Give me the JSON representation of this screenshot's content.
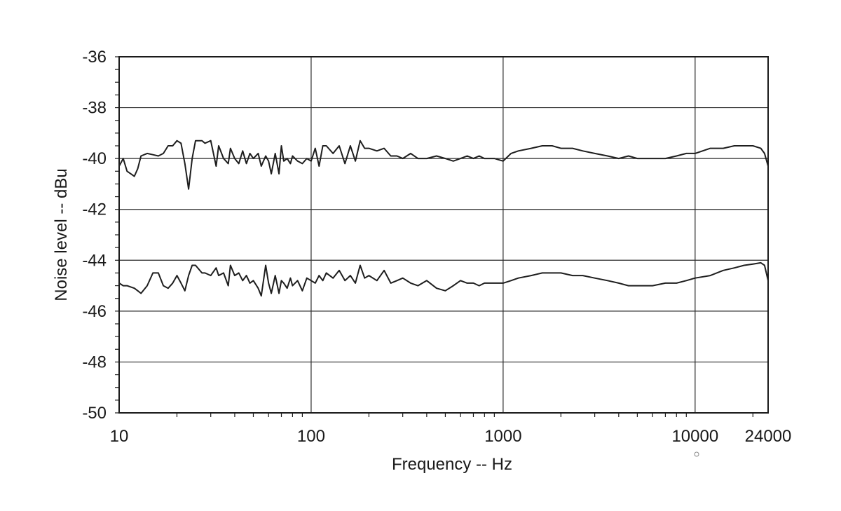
{
  "chart_data": {
    "type": "line",
    "title": "",
    "xlabel": "Frequency -- Hz",
    "ylabel": "Noise level -- dBu",
    "x_scale": "log",
    "xlim": [
      10,
      24000
    ],
    "ylim": [
      -50,
      -36
    ],
    "x_ticks": [
      {
        "value": 10,
        "label": "10"
      },
      {
        "value": 100,
        "label": "100"
      },
      {
        "value": 1000,
        "label": "1000"
      },
      {
        "value": 10000,
        "label": "10000"
      },
      {
        "value": 24000,
        "label": "24000"
      }
    ],
    "y_ticks": [
      {
        "value": -36,
        "label": "-36"
      },
      {
        "value": -38,
        "label": "-38"
      },
      {
        "value": -40,
        "label": "-40"
      },
      {
        "value": -42,
        "label": "-42"
      },
      {
        "value": -44,
        "label": "-44"
      },
      {
        "value": -46,
        "label": "-46"
      },
      {
        "value": -48,
        "label": "-48"
      },
      {
        "value": -50,
        "label": "-50"
      }
    ],
    "grid": true,
    "colors": {
      "line": "#1e1e1e",
      "grid": "#2a2a2a"
    },
    "series": [
      {
        "x": [
          10,
          10.5,
          11,
          11.5,
          12,
          12.5,
          13,
          14,
          15,
          16,
          17,
          18,
          19,
          20,
          21,
          22,
          23,
          24,
          25,
          27,
          28,
          30,
          32,
          33,
          35,
          37,
          38,
          40,
          42,
          44,
          46,
          48,
          50,
          53,
          55,
          58,
          60,
          62,
          65,
          68,
          70,
          72,
          75,
          78,
          80,
          85,
          90,
          95,
          100,
          105,
          110,
          115,
          120,
          130,
          140,
          150,
          160,
          170,
          180,
          190,
          200,
          220,
          240,
          260,
          280,
          300,
          330,
          360,
          400,
          450,
          500,
          550,
          600,
          650,
          700,
          750,
          800,
          900,
          1000,
          1100,
          1200,
          1400,
          1600,
          1800,
          2000,
          2300,
          2600,
          3000,
          3500,
          4000,
          4500,
          5000,
          5500,
          6000,
          7000,
          8000,
          9000,
          10000,
          12000,
          14000,
          16000,
          18000,
          20000,
          22000,
          23000,
          24000
        ],
        "y": [
          -40.3,
          -40.0,
          -40.5,
          -40.6,
          -40.7,
          -40.4,
          -39.9,
          -39.8,
          -39.85,
          -39.9,
          -39.8,
          -39.5,
          -39.5,
          -39.3,
          -39.4,
          -40.2,
          -41.2,
          -40.0,
          -39.3,
          -39.3,
          -39.4,
          -39.3,
          -40.3,
          -39.5,
          -40.0,
          -40.2,
          -39.6,
          -40.0,
          -40.2,
          -39.7,
          -40.2,
          -39.8,
          -40.0,
          -39.8,
          -40.3,
          -39.9,
          -40.1,
          -40.6,
          -39.8,
          -40.6,
          -39.5,
          -40.1,
          -40.0,
          -40.2,
          -39.9,
          -40.1,
          -40.2,
          -40.0,
          -40.1,
          -39.6,
          -40.3,
          -39.5,
          -39.5,
          -39.8,
          -39.5,
          -40.2,
          -39.5,
          -40.1,
          -39.3,
          -39.6,
          -39.6,
          -39.7,
          -39.6,
          -39.9,
          -39.9,
          -40.0,
          -39.8,
          -40.0,
          -40.0,
          -39.9,
          -40.0,
          -40.1,
          -40.0,
          -39.9,
          -40.0,
          -39.9,
          -40.0,
          -40.0,
          -40.1,
          -39.8,
          -39.7,
          -39.6,
          -39.5,
          -39.5,
          -39.6,
          -39.6,
          -39.7,
          -39.8,
          -39.9,
          -40.0,
          -39.9,
          -40.0,
          -40.0,
          -40.0,
          -40.0,
          -39.9,
          -39.8,
          -39.8,
          -39.6,
          -39.6,
          -39.5,
          -39.5,
          -39.5,
          -39.6,
          -39.8,
          -40.3
        ]
      },
      {
        "x": [
          10,
          10.5,
          11,
          11.5,
          12,
          12.5,
          13,
          14,
          15,
          16,
          17,
          18,
          19,
          20,
          21,
          22,
          23,
          24,
          25,
          27,
          28,
          30,
          32,
          33,
          35,
          37,
          38,
          40,
          42,
          44,
          46,
          48,
          50,
          53,
          55,
          58,
          60,
          62,
          65,
          68,
          70,
          72,
          75,
          78,
          80,
          85,
          90,
          95,
          100,
          105,
          110,
          115,
          120,
          130,
          140,
          150,
          160,
          170,
          180,
          190,
          200,
          220,
          240,
          260,
          280,
          300,
          330,
          360,
          400,
          450,
          500,
          550,
          600,
          650,
          700,
          750,
          800,
          900,
          1000,
          1100,
          1200,
          1400,
          1600,
          1800,
          2000,
          2300,
          2600,
          3000,
          3500,
          4000,
          4500,
          5000,
          5500,
          6000,
          7000,
          8000,
          9000,
          10000,
          12000,
          14000,
          16000,
          18000,
          20000,
          22000,
          23000,
          24000
        ],
        "y": [
          -44.9,
          -45.0,
          -45.0,
          -45.05,
          -45.1,
          -45.2,
          -45.3,
          -45.0,
          -44.5,
          -44.5,
          -45.0,
          -45.1,
          -44.9,
          -44.6,
          -44.9,
          -45.2,
          -44.6,
          -44.2,
          -44.2,
          -44.5,
          -44.5,
          -44.6,
          -44.3,
          -44.6,
          -44.5,
          -45.0,
          -44.2,
          -44.6,
          -44.5,
          -44.8,
          -44.6,
          -44.9,
          -44.8,
          -45.1,
          -45.4,
          -44.2,
          -44.9,
          -45.3,
          -44.6,
          -45.3,
          -44.8,
          -44.9,
          -45.1,
          -44.7,
          -45.0,
          -44.8,
          -45.2,
          -44.7,
          -44.8,
          -44.9,
          -44.6,
          -44.8,
          -44.5,
          -44.7,
          -44.4,
          -44.8,
          -44.6,
          -44.9,
          -44.2,
          -44.7,
          -44.6,
          -44.8,
          -44.4,
          -44.9,
          -44.8,
          -44.7,
          -44.9,
          -45.0,
          -44.8,
          -45.1,
          -45.2,
          -45.0,
          -44.8,
          -44.9,
          -44.9,
          -45.0,
          -44.9,
          -44.9,
          -44.9,
          -44.8,
          -44.7,
          -44.6,
          -44.5,
          -44.5,
          -44.5,
          -44.6,
          -44.6,
          -44.7,
          -44.8,
          -44.9,
          -45.0,
          -45.0,
          -45.0,
          -45.0,
          -44.9,
          -44.9,
          -44.8,
          -44.7,
          -44.6,
          -44.4,
          -44.3,
          -44.2,
          -44.15,
          -44.1,
          -44.2,
          -44.8
        ]
      }
    ]
  }
}
